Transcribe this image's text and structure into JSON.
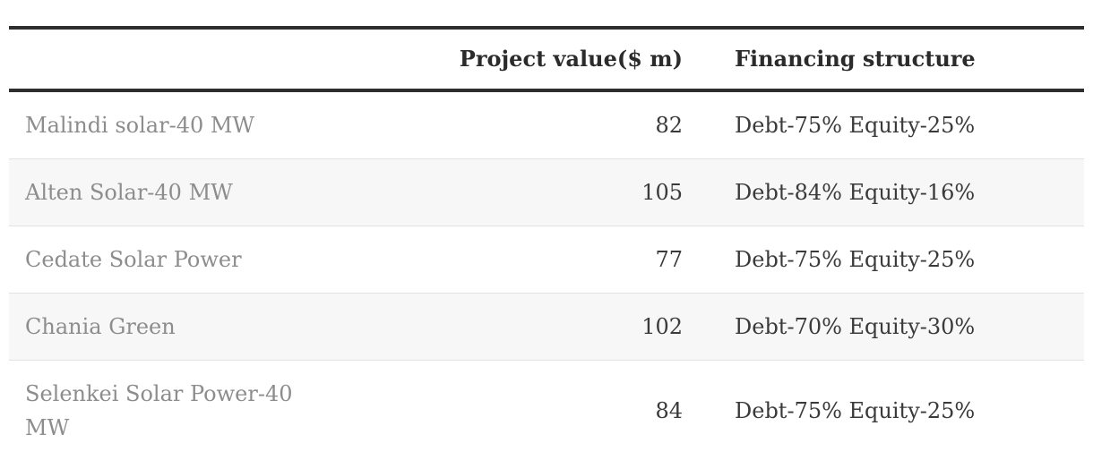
{
  "chart_data": {
    "type": "table",
    "columns": [
      "",
      "Project value($ m)",
      "Financing structure"
    ],
    "column_align": [
      "left",
      "right",
      "left"
    ],
    "rows": [
      [
        "Malindi solar-40 MW",
        "82",
        "Debt-75% Equity-25%"
      ],
      [
        "Alten Solar-40 MW",
        "105",
        "Debt-84% Equity-16%"
      ],
      [
        "Cedate Solar Power",
        "77",
        "Debt-75% Equity-25%"
      ],
      [
        "Chania Green",
        "102",
        "Debt-70% Equity-30%"
      ],
      [
        "Selenkei Solar Power-40 MW",
        "84",
        "Debt-75% Equity-25%"
      ]
    ],
    "layout": {
      "zebra_striping": true,
      "legend": "none",
      "grid": "horizontal-rules"
    },
    "colors": {
      "rule": "#2e2e2e",
      "row_separator": "#e2e2e2",
      "stripe_background": "#f7f7f7",
      "project_name_text": "#8d8d8d",
      "cell_text": "#3a3a3a",
      "header_text": "#2b2b2b",
      "background": "#ffffff"
    }
  }
}
